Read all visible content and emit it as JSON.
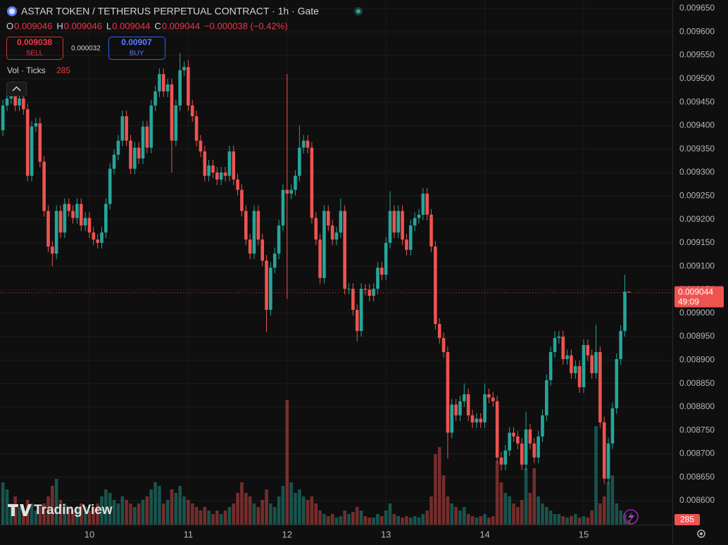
{
  "header": {
    "title": "ASTAR TOKEN / TETHERUS PERPETUAL CONTRACT · 1h · Gate",
    "ohlc_labels": [
      "O",
      "H",
      "L",
      "C"
    ],
    "change": "−0.000038 (−0.42%)",
    "sell_price": 0.009038,
    "sell_label": "SELL",
    "spread": 3.2e-05,
    "buy_price": 0.00907,
    "buy_label": "BUY",
    "volume_legend": "Vol · Ticks"
  },
  "chart_data": {
    "type": "candlestick",
    "watermark": "TradingView",
    "countdown": "49:09",
    "up_color": "#26a69a",
    "down_color": "#ef5350",
    "grid": true,
    "categories": [
      null,
      null,
      null,
      null,
      null,
      null,
      null,
      null,
      null,
      null,
      null,
      null,
      null,
      null,
      null,
      null,
      null,
      null,
      null,
      null,
      null,
      "10",
      null,
      null,
      null,
      null,
      null,
      null,
      null,
      null,
      null,
      null,
      null,
      null,
      null,
      null,
      null,
      null,
      null,
      null,
      null,
      null,
      null,
      null,
      null,
      "11",
      null,
      null,
      null,
      null,
      null,
      null,
      null,
      null,
      null,
      null,
      null,
      null,
      null,
      null,
      null,
      null,
      null,
      null,
      null,
      null,
      null,
      null,
      null,
      "12",
      null,
      null,
      null,
      null,
      null,
      null,
      null,
      null,
      null,
      null,
      null,
      null,
      null,
      null,
      null,
      null,
      null,
      null,
      null,
      null,
      null,
      null,
      null,
      "13",
      null,
      null,
      null,
      null,
      null,
      null,
      null,
      null,
      null,
      null,
      null,
      null,
      null,
      null,
      null,
      null,
      null,
      null,
      null,
      null,
      null,
      null,
      null,
      "14",
      null,
      null,
      null,
      null,
      null,
      null,
      null,
      null,
      null,
      null,
      null,
      null,
      null,
      null,
      null,
      null,
      null,
      null,
      null,
      null,
      null,
      null,
      null,
      "15",
      null,
      null,
      null,
      null,
      null,
      null,
      null,
      null,
      null,
      null,
      null
    ],
    "open": [
      0.00939,
      0.009443,
      0.009458,
      0.009473,
      0.009443,
      0.009458,
      0.009435,
      0.009293,
      0.009398,
      0.009405,
      0.009323,
      0.009218,
      0.009142,
      0.009127,
      0.009218,
      0.009172,
      0.009233,
      0.009218,
      0.009203,
      0.009233,
      0.009187,
      0.009203,
      0.009172,
      0.009157,
      0.00915,
      0.009172,
      0.009233,
      0.009308,
      0.009338,
      0.009368,
      0.00942,
      0.009368,
      0.009308,
      0.009353,
      0.00933,
      0.009398,
      0.009353,
      0.009443,
      0.009473,
      0.00951,
      0.009473,
      0.009488,
      0.009368,
      0.009443,
      0.009518,
      0.009525,
      0.009443,
      0.00942,
      0.009368,
      0.009345,
      0.009293,
      0.009315,
      0.0093,
      0.009285,
      0.0093,
      0.009293,
      0.009345,
      0.009285,
      0.009263,
      0.009218,
      0.009157,
      0.009127,
      0.009218,
      0.009157,
      0.009112,
      0.009007,
      0.009097,
      0.009127,
      0.009187,
      0.009263,
      0.009255,
      0.009263,
      0.009293,
      0.009353,
      0.009368,
      0.009353,
      0.009203,
      0.009157,
      0.009075,
      0.009218,
      0.009187,
      0.009157,
      0.009172,
      0.009218,
      0.009052,
      0.009052,
      0.009007,
      0.008962,
      0.009052,
      0.00905,
      0.009037,
      0.009052,
      0.009097,
      0.009082,
      0.00915,
      0.009218,
      0.009172,
      0.009218,
      0.009157,
      0.009135,
      0.009187,
      0.009203,
      0.00921,
      0.009255,
      0.00921,
      0.009142,
      0.008977,
      0.008947,
      0.008917,
      0.008745,
      0.008805,
      0.008782,
      0.008812,
      0.008827,
      0.008782,
      0.008767,
      0.008775,
      0.008767,
      0.008827,
      0.00882,
      0.008812,
      0.008692,
      0.008677,
      0.008707,
      0.008745,
      0.008737,
      0.008722,
      0.008677,
      0.008752,
      0.008722,
      0.008692,
      0.008737,
      0.008782,
      0.008857,
      0.008917,
      0.008947,
      0.00895,
      0.008902,
      0.00891,
      0.008872,
      0.008887,
      0.008842,
      0.008932,
      0.00891,
      0.008872,
      0.008917,
      0.008767,
      0.008647,
      0.008722,
      0.008797,
      0.008902,
      0.008962,
      0.009046
    ],
    "high": [
      0.009455,
      0.00947,
      0.009485,
      0.009485,
      0.00947,
      0.00947,
      0.009447,
      0.00941,
      0.009417,
      0.009417,
      0.009335,
      0.00923,
      0.009154,
      0.00923,
      0.00923,
      0.009245,
      0.009245,
      0.00923,
      0.009245,
      0.009245,
      0.009215,
      0.009215,
      0.009184,
      0.009169,
      0.009184,
      0.009245,
      0.00932,
      0.00935,
      0.00938,
      0.009432,
      0.009432,
      0.00938,
      0.009365,
      0.009365,
      0.00941,
      0.00941,
      0.009455,
      0.009485,
      0.009522,
      0.009522,
      0.0095,
      0.0095,
      0.009455,
      0.009555,
      0.009537,
      0.00954,
      0.009455,
      0.009432,
      0.00938,
      0.009357,
      0.009327,
      0.009327,
      0.009312,
      0.009312,
      0.009312,
      0.009357,
      0.009357,
      0.009297,
      0.009275,
      0.00923,
      0.009169,
      0.00923,
      0.00923,
      0.009169,
      0.009124,
      0.009109,
      0.009139,
      0.009199,
      0.009275,
      0.00951,
      0.009275,
      0.009305,
      0.0094,
      0.00938,
      0.00938,
      0.009365,
      0.009215,
      0.009169,
      0.00923,
      0.00923,
      0.009199,
      0.009184,
      0.009245,
      0.00923,
      0.009064,
      0.009064,
      0.009019,
      0.009064,
      0.009062,
      0.009062,
      0.009064,
      0.009109,
      0.009109,
      0.009162,
      0.00926,
      0.00923,
      0.00923,
      0.00923,
      0.009169,
      0.009199,
      0.009215,
      0.009222,
      0.009267,
      0.009267,
      0.009222,
      0.009154,
      0.008989,
      0.008959,
      0.008929,
      0.008817,
      0.008817,
      0.008824,
      0.00885,
      0.008839,
      0.008794,
      0.008787,
      0.008787,
      0.00885,
      0.008839,
      0.008832,
      0.008824,
      0.008704,
      0.008719,
      0.008757,
      0.008757,
      0.008749,
      0.008734,
      0.00879,
      0.008764,
      0.008734,
      0.008749,
      0.008794,
      0.008869,
      0.008929,
      0.008962,
      0.008962,
      0.008962,
      0.008922,
      0.008922,
      0.008899,
      0.008899,
      0.008944,
      0.008944,
      0.008922,
      0.008975,
      0.008929,
      0.008779,
      0.008734,
      0.008809,
      0.008914,
      0.008974,
      0.009082,
      0.009046
    ],
    "low": [
      0.009378,
      0.009431,
      0.009446,
      0.009431,
      0.009431,
      0.009423,
      0.009281,
      0.009281,
      0.009386,
      0.009311,
      0.009206,
      0.00913,
      0.0091,
      0.009115,
      0.00916,
      0.00916,
      0.009206,
      0.009191,
      0.009191,
      0.009175,
      0.009175,
      0.00916,
      0.009145,
      0.009138,
      0.009138,
      0.00916,
      0.009221,
      0.009296,
      0.009326,
      0.009356,
      0.009356,
      0.009296,
      0.009296,
      0.009318,
      0.009318,
      0.009341,
      0.009341,
      0.009431,
      0.009461,
      0.009461,
      0.009461,
      0.0093,
      0.009356,
      0.009431,
      0.009506,
      0.009431,
      0.009408,
      0.009356,
      0.009333,
      0.009281,
      0.009281,
      0.009288,
      0.009273,
      0.009273,
      0.009281,
      0.009281,
      0.009273,
      0.009251,
      0.009206,
      0.009145,
      0.009115,
      0.009115,
      0.009145,
      0.0091,
      0.00896,
      0.008995,
      0.009085,
      0.009115,
      0.009175,
      0.00903,
      0.009243,
      0.009251,
      0.009281,
      0.009341,
      0.009341,
      0.009191,
      0.009145,
      0.009063,
      0.009063,
      0.009175,
      0.009145,
      0.009145,
      0.00916,
      0.00904,
      0.00904,
      0.008995,
      0.00894,
      0.00895,
      0.009038,
      0.009025,
      0.009025,
      0.00904,
      0.00907,
      0.00907,
      0.009138,
      0.00916,
      0.00916,
      0.009145,
      0.009123,
      0.009123,
      0.009175,
      0.009191,
      0.009198,
      0.009198,
      0.00913,
      0.008965,
      0.008935,
      0.008905,
      0.00869,
      0.008733,
      0.00877,
      0.00877,
      0.0088,
      0.00877,
      0.008755,
      0.008755,
      0.008755,
      0.008755,
      0.008808,
      0.0088,
      0.00868,
      0.008665,
      0.008665,
      0.008695,
      0.008725,
      0.00871,
      0.008665,
      0.008665,
      0.00871,
      0.00868,
      0.00868,
      0.008725,
      0.00877,
      0.008845,
      0.008905,
      0.008935,
      0.00889,
      0.00889,
      0.00886,
      0.00886,
      0.00883,
      0.00883,
      0.008898,
      0.00886,
      0.00886,
      0.008755,
      0.008635,
      0.008635,
      0.00871,
      0.008785,
      0.00889,
      0.00895,
      0.009044
    ],
    "close": [
      0.009443,
      0.009458,
      0.009473,
      0.009443,
      0.009458,
      0.009435,
      0.009293,
      0.009398,
      0.009405,
      0.009323,
      0.009218,
      0.009142,
      0.009127,
      0.009218,
      0.009172,
      0.009233,
      0.009218,
      0.009203,
      0.009233,
      0.009187,
      0.009203,
      0.009172,
      0.009157,
      0.00915,
      0.009172,
      0.009233,
      0.009308,
      0.009338,
      0.009368,
      0.00942,
      0.009368,
      0.009308,
      0.009353,
      0.00933,
      0.009398,
      0.009353,
      0.009443,
      0.009473,
      0.00951,
      0.009473,
      0.009488,
      0.009368,
      0.009443,
      0.009518,
      0.009525,
      0.009443,
      0.00942,
      0.009368,
      0.009345,
      0.009293,
      0.009315,
      0.0093,
      0.009285,
      0.0093,
      0.009293,
      0.009345,
      0.009285,
      0.009263,
      0.009218,
      0.009157,
      0.009127,
      0.009218,
      0.009157,
      0.009112,
      0.009007,
      0.009097,
      0.009127,
      0.009187,
      0.009263,
      0.009255,
      0.009263,
      0.009293,
      0.009353,
      0.009368,
      0.009353,
      0.009203,
      0.009157,
      0.009075,
      0.009218,
      0.009187,
      0.009157,
      0.009172,
      0.009218,
      0.009052,
      0.009052,
      0.009007,
      0.008962,
      0.009052,
      0.00905,
      0.009037,
      0.009052,
      0.009097,
      0.009082,
      0.00915,
      0.009218,
      0.009172,
      0.009218,
      0.009157,
      0.009135,
      0.009187,
      0.009203,
      0.00921,
      0.009255,
      0.00921,
      0.009142,
      0.008977,
      0.008947,
      0.008917,
      0.008745,
      0.008805,
      0.008782,
      0.008812,
      0.008827,
      0.008782,
      0.008767,
      0.008775,
      0.008767,
      0.008827,
      0.00882,
      0.008812,
      0.008692,
      0.008677,
      0.008707,
      0.008745,
      0.008737,
      0.008722,
      0.008677,
      0.008752,
      0.008722,
      0.008692,
      0.008737,
      0.008782,
      0.008857,
      0.008917,
      0.008947,
      0.00895,
      0.008902,
      0.00891,
      0.008872,
      0.008887,
      0.008842,
      0.008932,
      0.00891,
      0.008872,
      0.008917,
      0.008767,
      0.008647,
      0.008722,
      0.008797,
      0.008902,
      0.008962,
      0.009046,
      0.009044
    ],
    "volumes": [
      2400,
      2000,
      1200,
      1600,
      1000,
      800,
      1400,
      1200,
      800,
      1000,
      1200,
      1600,
      2200,
      2600,
      1400,
      1200,
      1000,
      800,
      1000,
      1200,
      1000,
      800,
      1000,
      1200,
      1600,
      2000,
      1800,
      1400,
      1200,
      1600,
      1400,
      1200,
      1000,
      1200,
      1400,
      1600,
      2000,
      2400,
      2200,
      1200,
      1400,
      2000,
      1800,
      2200,
      1600,
      1400,
      1200,
      1000,
      800,
      1000,
      800,
      600,
      800,
      600,
      800,
      1000,
      1200,
      1800,
      2400,
      1800,
      1600,
      1200,
      1000,
      1400,
      2000,
      1200,
      1000,
      1600,
      2200,
      7080,
      2400,
      1800,
      2000,
      1600,
      1400,
      1600,
      1200,
      800,
      600,
      480,
      600,
      400,
      480,
      800,
      600,
      720,
      1000,
      800,
      480,
      400,
      400,
      600,
      480,
      800,
      1200,
      600,
      480,
      400,
      480,
      400,
      480,
      400,
      600,
      800,
      1600,
      4000,
      4400,
      2800,
      1600,
      1200,
      1000,
      800,
      1000,
      600,
      480,
      400,
      480,
      600,
      400,
      480,
      3600,
      2400,
      1800,
      1600,
      1200,
      1000,
      1400,
      3200,
      1800,
      3200,
      1600,
      1200,
      1000,
      800,
      600,
      600,
      480,
      400,
      480,
      600,
      400,
      480,
      400,
      800,
      5600,
      1200,
      1600,
      2400,
      2800,
      1200,
      800,
      600,
      285
    ],
    "ylim": [
      0.008549,
      0.009668
    ],
    "yticks": [
      {
        "value": 0.00965,
        "label": "0.009650"
      },
      {
        "value": 0.0096,
        "label": "0.009600"
      },
      {
        "value": 0.00955,
        "label": "0.009550"
      },
      {
        "value": 0.0095,
        "label": "0.009500"
      },
      {
        "value": 0.00945,
        "label": "0.009450"
      },
      {
        "value": 0.0094,
        "label": "0.009400"
      },
      {
        "value": 0.00935,
        "label": "0.009350"
      },
      {
        "value": 0.0093,
        "label": "0.009300"
      },
      {
        "value": 0.00925,
        "label": "0.009250"
      },
      {
        "value": 0.0092,
        "label": "0.009200"
      },
      {
        "value": 0.00915,
        "label": "0.009150"
      },
      {
        "value": 0.0091,
        "label": "0.009100"
      },
      {
        "value": 0.00905,
        "label": "0.009050"
      },
      {
        "value": 0.009,
        "label": "0.009000"
      },
      {
        "value": 0.00895,
        "label": "0.008950"
      },
      {
        "value": 0.0089,
        "label": "0.008900"
      },
      {
        "value": 0.00885,
        "label": "0.008850"
      },
      {
        "value": 0.0088,
        "label": "0.008800"
      },
      {
        "value": 0.00875,
        "label": "0.008750"
      },
      {
        "value": 0.0087,
        "label": "0.008700"
      },
      {
        "value": 0.00865,
        "label": "0.008650"
      },
      {
        "value": 0.0086,
        "label": "0.008600"
      }
    ]
  }
}
